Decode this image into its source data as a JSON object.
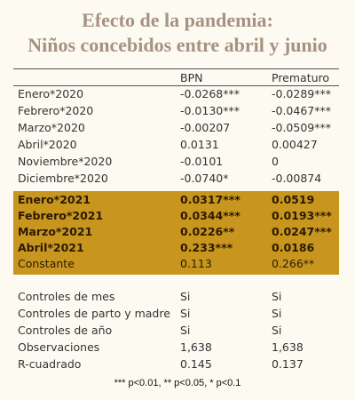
{
  "title": [
    "Efecto de la pandemia:",
    "Niños concebidos entre abril y junio"
  ],
  "table": {
    "columns": [
      "BPN",
      "Prematuro"
    ],
    "sections": [
      {
        "highlight": false,
        "rows": [
          {
            "label": "Enero*2020",
            "cells": [
              "-0.0268***",
              "-0.0289***"
            ]
          },
          {
            "label": "Febrero*2020",
            "cells": [
              "-0.0130***",
              "-0.0467***"
            ]
          },
          {
            "label": "Marzo*2020",
            "cells": [
              "-0.00207",
              "-0.0509***"
            ]
          },
          {
            "label": "Abril*2020",
            "cells": [
              "0.0131",
              "0.00427"
            ]
          },
          {
            "label": "Noviembre*2020",
            "cells": [
              "-0.0101",
              "0"
            ]
          },
          {
            "label": "Diciembre*2020",
            "cells": [
              "-0.0740*",
              "-0.00874"
            ]
          }
        ]
      },
      {
        "highlight": true,
        "rows": [
          {
            "label": "Enero*2021",
            "cells": [
              "0.0317***",
              "0.0519"
            ],
            "bold": true
          },
          {
            "label": "Febrero*2021",
            "cells": [
              "0.0344***",
              "0.0193***"
            ],
            "bold": true
          },
          {
            "label": "Marzo*2021",
            "cells": [
              "0.0226**",
              "0.0247***"
            ],
            "bold": true
          },
          {
            "label": "Abril*2021",
            "cells": [
              "0.233***",
              "0.0186"
            ],
            "bold": true
          },
          {
            "label": "Constante",
            "cells": [
              "0.113",
              "0.266**"
            ],
            "bold": false
          }
        ]
      },
      {
        "highlight": false,
        "rows": [
          {
            "label": "Controles de mes",
            "cells": [
              "Si",
              "Si"
            ]
          },
          {
            "label": "Controles de parto y madre",
            "cells": [
              "Si",
              "Si"
            ]
          },
          {
            "label": "Controles de año",
            "cells": [
              "Si",
              "Si"
            ]
          },
          {
            "label": "Observaciones",
            "cells": [
              "1,638",
              "1,638"
            ]
          },
          {
            "label": "R-cuadrado",
            "cells": [
              "0.145",
              "0.137"
            ]
          }
        ]
      }
    ]
  },
  "footnote": "*** p<0.01, ** p<0.05, * p<0.1"
}
